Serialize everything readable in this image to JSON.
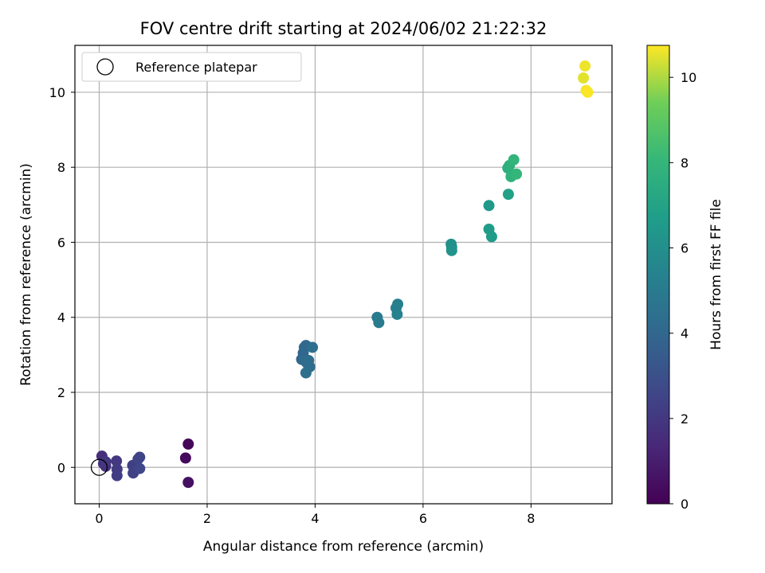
{
  "chart_data": {
    "type": "scatter",
    "title": "FOV centre drift starting at 2024/06/02 21:22:32",
    "xlabel": "Angular distance from reference (arcmin)",
    "ylabel": "Rotation from reference (arcmin)",
    "xlim": [
      -0.45,
      9.5
    ],
    "ylim": [
      -0.97,
      11.25
    ],
    "xticks": [
      "0",
      "2",
      "4",
      "6",
      "8"
    ],
    "xtick_values": [
      0,
      2,
      4,
      6,
      8
    ],
    "yticks": [
      "0",
      "2",
      "4",
      "6",
      "8",
      "10"
    ],
    "ytick_values": [
      0,
      2,
      4,
      6,
      8,
      10
    ],
    "grid": true,
    "legend": {
      "placement": "top-left",
      "entries": [
        "Reference platepar"
      ]
    },
    "reference_point": {
      "x": 0,
      "y": 0
    },
    "colorbar": {
      "label": "Hours from first FF file",
      "range": [
        0,
        10.75
      ],
      "ticks": [
        "0",
        "2",
        "4",
        "6",
        "8",
        "10"
      ],
      "tick_values": [
        0,
        2,
        4,
        6,
        8,
        10
      ],
      "colormap": "viridis"
    },
    "points": [
      {
        "x": 1.65,
        "y": 0.62,
        "c": 0.2
      },
      {
        "x": 1.6,
        "y": 0.25,
        "c": 0.3
      },
      {
        "x": 1.65,
        "y": -0.4,
        "c": 0.5
      },
      {
        "x": 0.05,
        "y": 0.3,
        "c": 1.6
      },
      {
        "x": 0.08,
        "y": 0.1,
        "c": 1.7
      },
      {
        "x": 0.12,
        "y": 0.03,
        "c": 1.8
      },
      {
        "x": 0.12,
        "y": 0.15,
        "c": 1.9
      },
      {
        "x": 0.32,
        "y": 0.17,
        "c": 2.0
      },
      {
        "x": 0.33,
        "y": -0.05,
        "c": 2.1
      },
      {
        "x": 0.33,
        "y": -0.22,
        "c": 2.2
      },
      {
        "x": 0.62,
        "y": 0.05,
        "c": 2.3
      },
      {
        "x": 0.63,
        "y": -0.15,
        "c": 2.4
      },
      {
        "x": 0.75,
        "y": 0.27,
        "c": 2.5
      },
      {
        "x": 0.72,
        "y": 0.22,
        "c": 2.5
      },
      {
        "x": 0.75,
        "y": -0.03,
        "c": 2.6
      },
      {
        "x": 3.75,
        "y": 2.88,
        "c": 4.0
      },
      {
        "x": 3.78,
        "y": 3.05,
        "c": 4.0
      },
      {
        "x": 3.8,
        "y": 3.2,
        "c": 4.1
      },
      {
        "x": 3.83,
        "y": 3.25,
        "c": 4.1
      },
      {
        "x": 3.8,
        "y": 2.85,
        "c": 4.2
      },
      {
        "x": 3.85,
        "y": 2.78,
        "c": 4.2
      },
      {
        "x": 3.88,
        "y": 2.85,
        "c": 4.3
      },
      {
        "x": 3.9,
        "y": 2.68,
        "c": 4.3
      },
      {
        "x": 3.83,
        "y": 2.52,
        "c": 4.4
      },
      {
        "x": 3.95,
        "y": 3.2,
        "c": 4.4
      },
      {
        "x": 5.15,
        "y": 4.0,
        "c": 5.0
      },
      {
        "x": 5.18,
        "y": 3.86,
        "c": 5.0
      },
      {
        "x": 5.5,
        "y": 4.25,
        "c": 5.2
      },
      {
        "x": 5.53,
        "y": 4.35,
        "c": 5.2
      },
      {
        "x": 5.52,
        "y": 4.08,
        "c": 5.3
      },
      {
        "x": 6.52,
        "y": 5.95,
        "c": 6.1
      },
      {
        "x": 6.53,
        "y": 5.87,
        "c": 6.1
      },
      {
        "x": 6.53,
        "y": 5.78,
        "c": 6.2
      },
      {
        "x": 7.22,
        "y": 6.98,
        "c": 6.5
      },
      {
        "x": 7.22,
        "y": 6.35,
        "c": 6.6
      },
      {
        "x": 7.27,
        "y": 6.15,
        "c": 6.6
      },
      {
        "x": 7.58,
        "y": 7.28,
        "c": 6.9
      },
      {
        "x": 7.57,
        "y": 7.98,
        "c": 7.6
      },
      {
        "x": 7.6,
        "y": 8.05,
        "c": 7.7
      },
      {
        "x": 7.63,
        "y": 7.75,
        "c": 7.8
      },
      {
        "x": 7.68,
        "y": 8.2,
        "c": 7.9
      },
      {
        "x": 7.73,
        "y": 7.82,
        "c": 8.0
      },
      {
        "x": 8.97,
        "y": 10.38,
        "c": 10.5
      },
      {
        "x": 9.0,
        "y": 10.7,
        "c": 10.6
      },
      {
        "x": 9.02,
        "y": 10.05,
        "c": 10.7
      },
      {
        "x": 9.05,
        "y": 10.0,
        "c": 10.7
      }
    ]
  }
}
